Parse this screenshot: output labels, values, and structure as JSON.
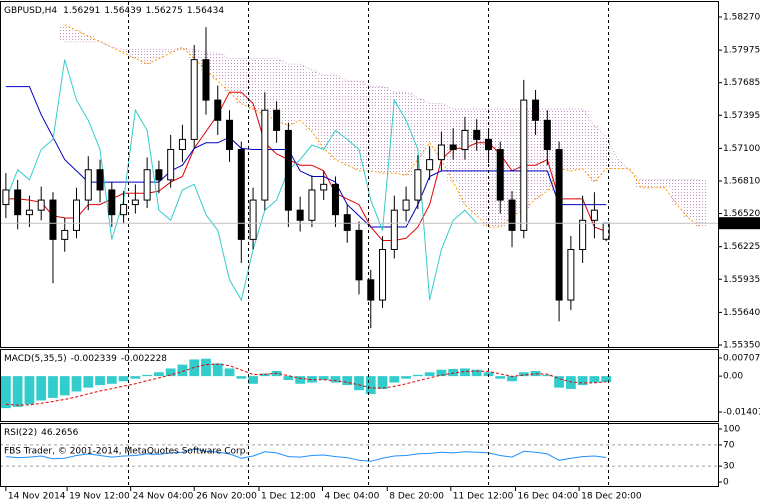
{
  "chart_data": [
    {
      "type": "candlestick",
      "title": "GBPUSD,H4",
      "x": [
        0,
        1,
        2,
        3,
        4,
        5,
        6,
        7,
        8,
        9,
        10,
        11,
        12,
        13,
        14,
        15,
        16,
        17,
        18,
        19,
        20,
        21,
        22,
        23,
        24,
        25,
        26,
        27,
        28,
        29,
        30,
        31,
        32,
        33,
        34,
        35,
        36,
        37,
        38,
        39,
        40,
        41,
        42,
        43,
        44,
        45,
        46,
        47,
        48,
        49,
        50,
        51,
        52,
        53,
        54,
        55,
        56,
        57,
        58,
        59
      ],
      "xlim": [
        -0.5,
        60.5
      ],
      "xticks": [
        {
          "value": 0,
          "label": "14 Nov 2014"
        },
        {
          "value": 5.2,
          "label": "19 Nov 12:00"
        },
        {
          "value": 10.6,
          "label": "24 Nov 04:00"
        },
        {
          "value": 16,
          "label": "26 Nov 20:00"
        },
        {
          "value": 21.5,
          "label": "1 Dec 12:00"
        },
        {
          "value": 26.9,
          "label": "4 Dec 04:00"
        },
        {
          "value": 32.4,
          "label": "8 Dec 20:00"
        },
        {
          "value": 37.8,
          "label": "11 Dec 12:00"
        },
        {
          "value": 43.3,
          "label": "16 Dec 04:00"
        },
        {
          "value": 48.7,
          "label": "18 Dec 20:00"
        }
      ],
      "ylim": [
        1.55332,
        1.58421
      ],
      "yticks": [
        {
          "value": 1.5827,
          "label": "1.58270"
        },
        1.57975,
        1.57685,
        1.57395,
        {
          "value": 1.571,
          "label": "1.57100"
        },
        {
          "value": 1.5681,
          "label": "1.56810"
        },
        {
          "value": 1.5652,
          "label": "1.56520"
        },
        1.56225,
        1.55935,
        {
          "value": 1.5564,
          "label": "1.55640"
        },
        {
          "value": 1.5535,
          "label": "1.55350"
        }
      ],
      "up_color": "#ffffff",
      "down_color": "#000000",
      "open": [
        1.566,
        1.5673,
        1.5651,
        1.5655,
        1.5664,
        1.5629,
        1.5637,
        1.5664,
        1.5691,
        1.5673,
        1.5651,
        1.566,
        1.5664,
        1.5691,
        1.5682,
        1.5709,
        1.5718,
        1.5789,
        1.5753,
        1.5735,
        1.5709,
        1.5629,
        1.5664,
        1.5744,
        1.5726,
        1.5655,
        1.5646,
        1.5673,
        1.5678,
        1.5651,
        1.5637,
        1.5593,
        1.5575,
        1.562,
        1.5655,
        1.5664,
        1.5691,
        1.57,
        1.5713,
        1.5709,
        1.5726,
        1.5718,
        1.5709,
        1.5664,
        1.5637,
        1.5753,
        1.5735,
        1.5709,
        1.5575,
        1.562,
        1.5646,
        1.56291,
        null,
        null,
        null,
        null,
        null,
        null,
        null,
        null
      ],
      "high": [
        1.5688,
        1.5682,
        1.5668,
        1.5676,
        1.5671,
        1.5648,
        1.5675,
        1.5703,
        1.57,
        1.568,
        1.5672,
        1.5678,
        1.5702,
        1.5699,
        1.5722,
        1.5731,
        1.5802,
        1.5818,
        1.5766,
        1.5744,
        1.5716,
        1.5675,
        1.576,
        1.5752,
        1.5733,
        1.5667,
        1.5686,
        1.569,
        1.5685,
        1.566,
        1.5645,
        1.5602,
        1.5632,
        1.5668,
        1.5676,
        1.5704,
        1.5712,
        1.5725,
        1.5728,
        1.5738,
        1.5736,
        1.5728,
        1.5716,
        1.5672,
        1.5771,
        1.5762,
        1.5744,
        1.5716,
        1.5632,
        1.5668,
        1.5671,
        1.56439,
        null,
        null,
        null,
        null,
        null,
        null,
        null,
        null
      ],
      "low": [
        1.5648,
        1.5638,
        1.564,
        1.5646,
        1.559,
        1.5618,
        1.563,
        1.5655,
        1.5662,
        1.564,
        1.5643,
        1.5652,
        1.5657,
        1.567,
        1.5675,
        1.5698,
        1.571,
        1.574,
        1.5722,
        1.5698,
        1.5608,
        1.562,
        1.5655,
        1.5715,
        1.564,
        1.5636,
        1.564,
        1.5664,
        1.564,
        1.5626,
        1.558,
        1.555,
        1.5568,
        1.5612,
        1.5645,
        1.5656,
        1.5682,
        1.569,
        1.57,
        1.57,
        1.5708,
        1.5697,
        1.5652,
        1.5622,
        1.563,
        1.5722,
        1.5695,
        1.5556,
        1.5566,
        1.5608,
        1.563,
        1.56275,
        null,
        null,
        null,
        null,
        null,
        null,
        null,
        null
      ],
      "close": [
        1.5673,
        1.5651,
        1.5655,
        1.5664,
        1.5629,
        1.5637,
        1.5664,
        1.5691,
        1.5673,
        1.5651,
        1.566,
        1.5664,
        1.5691,
        1.5682,
        1.5709,
        1.5718,
        1.5789,
        1.5753,
        1.5735,
        1.5709,
        1.5629,
        1.5664,
        1.5744,
        1.5726,
        1.5655,
        1.5646,
        1.5673,
        1.5678,
        1.5651,
        1.5637,
        1.5593,
        1.5575,
        1.562,
        1.5655,
        1.5664,
        1.5691,
        1.57,
        1.5713,
        1.5709,
        1.5726,
        1.5718,
        1.5709,
        1.5664,
        1.5637,
        1.5753,
        1.5735,
        1.5709,
        1.5575,
        1.562,
        1.5646,
        1.5655,
        1.56434,
        null,
        null,
        null,
        null,
        null,
        null,
        null,
        null
      ],
      "lines": [
        {
          "color": "#e00000",
          "style": "solid",
          "values": [
            1.5665,
            1.5665,
            1.5664,
            1.5662,
            1.565,
            1.5648,
            1.5648,
            1.566,
            1.566,
            1.5665,
            1.567,
            1.567,
            1.567,
            1.5672,
            1.568,
            1.5685,
            1.571,
            1.5725,
            1.574,
            1.576,
            1.576,
            1.575,
            1.5715,
            1.5705,
            1.57,
            1.5695,
            1.5695,
            1.569,
            1.567,
            1.5665,
            1.566,
            1.564,
            1.5628,
            1.5628,
            1.563,
            1.564,
            1.566,
            1.57,
            1.571,
            1.571,
            1.5715,
            1.5715,
            1.5705,
            1.569,
            1.5695,
            1.5695,
            1.57,
            1.5665,
            1.5665,
            1.5665,
            1.564,
            1.5636,
            null,
            null,
            null,
            null,
            null,
            null,
            null,
            null
          ]
        },
        {
          "color": "#0000c0",
          "style": "solid",
          "values": [
            1.5765,
            1.5765,
            1.5765,
            1.574,
            1.572,
            1.57,
            1.569,
            1.568,
            1.568,
            1.568,
            1.568,
            1.568,
            1.568,
            1.568,
            1.569,
            1.5695,
            1.571,
            1.5715,
            1.5715,
            1.572,
            1.571,
            1.5709,
            1.5709,
            1.5709,
            1.5709,
            1.569,
            1.5685,
            1.5685,
            1.568,
            1.566,
            1.565,
            1.564,
            1.564,
            1.564,
            1.564,
            1.566,
            1.5685,
            1.569,
            1.569,
            1.569,
            1.569,
            1.569,
            1.569,
            1.569,
            1.569,
            1.569,
            1.569,
            1.566,
            1.566,
            1.566,
            1.566,
            1.566,
            null,
            null,
            null,
            null,
            null,
            null,
            null,
            null
          ]
        },
        {
          "color": "#33cccc",
          "style": "solid",
          "values": [
            1.5664,
            1.5691,
            1.5682,
            1.5709,
            1.5718,
            1.5789,
            1.5753,
            1.5735,
            1.5709,
            1.5629,
            1.5664,
            1.5744,
            1.5726,
            1.5655,
            1.5646,
            1.5673,
            1.5678,
            1.5651,
            1.5637,
            1.5593,
            1.5575,
            1.562,
            1.5655,
            1.5664,
            1.5691,
            1.57,
            1.5713,
            1.5709,
            1.5726,
            1.5718,
            1.5709,
            1.5664,
            1.5637,
            1.5753,
            1.5735,
            1.5709,
            1.5575,
            1.562,
            1.5646,
            1.5655,
            1.56434,
            null,
            null,
            null,
            null,
            null,
            null,
            null,
            null,
            null,
            null,
            null,
            null,
            null,
            null,
            null,
            null,
            null,
            null,
            null
          ]
        }
      ],
      "cloud": {
        "color": "#c090c0",
        "span_a_color": "#ff9900",
        "span_b_color": "#d0a0d0",
        "span_a": [
          null,
          null,
          null,
          null,
          null,
          1.582,
          1.5815,
          1.581,
          1.5805,
          1.58,
          1.5795,
          1.579,
          1.5785,
          1.579,
          1.5795,
          1.58,
          1.579,
          1.578,
          1.577,
          1.576,
          1.575,
          1.5745,
          1.574,
          1.5735,
          1.573,
          1.5735,
          1.5725,
          1.571,
          1.57,
          1.5695,
          1.569,
          1.569,
          1.5688,
          1.5688,
          1.5686,
          1.57,
          1.5715,
          1.57,
          1.568,
          1.566,
          1.565,
          1.564,
          1.564,
          1.565,
          1.5655,
          1.5665,
          1.5672,
          1.5692,
          1.569,
          1.5692,
          1.568,
          1.5692,
          1.5692,
          1.5692,
          1.5675,
          1.5675,
          1.5675,
          1.566,
          1.5648,
          1.564
        ],
        "span_b": [
          null,
          null,
          null,
          null,
          null,
          1.5805,
          1.5805,
          1.5805,
          1.5805,
          1.58,
          1.5798,
          1.5798,
          1.5798,
          1.5798,
          1.5798,
          1.5798,
          1.5798,
          1.5795,
          1.5795,
          1.579,
          1.579,
          1.579,
          1.579,
          1.579,
          1.5785,
          1.5785,
          1.578,
          1.5775,
          1.5775,
          1.577,
          1.577,
          1.5765,
          1.5765,
          1.576,
          1.576,
          1.5755,
          1.575,
          1.575,
          1.5745,
          1.5745,
          1.5745,
          1.5745,
          1.5745,
          1.5745,
          1.5745,
          1.5745,
          1.5745,
          1.5745,
          1.5745,
          1.5745,
          1.573,
          1.572,
          1.57,
          1.569,
          1.5682,
          1.5682,
          1.5682,
          1.5682,
          1.5682,
          1.5682
        ]
      }
    },
    {
      "type": "bar",
      "title": "MACD(5,35,5)",
      "color": "#33cccc",
      "signal_color": "#e00000",
      "ylim": [
        -0.01752,
        0.00981
      ],
      "yticks": [
        0.007077,
        {
          "value": 0,
          "label": "0.00"
        },
        -0.01401
      ],
      "values": [
        -0.0125,
        -0.012,
        -0.011,
        -0.0095,
        -0.0085,
        -0.0075,
        -0.006,
        -0.0045,
        -0.0035,
        -0.003,
        -0.002,
        -0.001,
        0.0005,
        0.0015,
        0.003,
        0.0045,
        0.0065,
        0.0068,
        0.005,
        0.003,
        -0.001,
        -0.003,
        0.001,
        0.002,
        -0.0015,
        -0.003,
        -0.0025,
        -0.0015,
        -0.0025,
        -0.0035,
        -0.0055,
        -0.007,
        -0.005,
        -0.0025,
        -0.001,
        0.0005,
        0.0015,
        0.0025,
        0.0028,
        0.003,
        0.0025,
        0.0015,
        -0.001,
        -0.002,
        0.0015,
        0.002,
        0.0005,
        -0.0045,
        -0.005,
        -0.0035,
        -0.0025,
        -0.002339,
        null,
        null,
        null,
        null,
        null,
        null,
        null,
        null
      ],
      "signal": [
        -0.011,
        -0.0113,
        -0.0112,
        -0.0106,
        -0.0099,
        -0.0091,
        -0.0081,
        -0.0069,
        -0.0058,
        -0.0049,
        -0.0039,
        -0.003,
        -0.0018,
        -0.0007,
        0.0005,
        0.0018,
        0.0034,
        0.0045,
        0.0047,
        0.0041,
        0.0024,
        0.0006,
        0.0007,
        0.0011,
        0.0002,
        -0.0009,
        -0.0014,
        -0.0014,
        -0.0018,
        -0.0024,
        -0.0034,
        -0.0046,
        -0.0047,
        -0.004,
        -0.003,
        -0.0018,
        -0.0007,
        0.0004,
        0.0012,
        0.0018,
        0.002,
        0.0018,
        0.0009,
        -0.0001,
        0.0004,
        0.0009,
        0.0008,
        -0.001,
        -0.0023,
        -0.0027,
        -0.0026,
        -0.002228,
        null,
        null,
        null,
        null,
        null,
        null,
        null,
        null
      ]
    },
    {
      "type": "line",
      "title": "RSI(22)",
      "color": "#1e90ff",
      "ylim": [
        -7.5,
        109.4
      ],
      "yticks": [
        100,
        70,
        30,
        0
      ],
      "levels": [
        70,
        30
      ],
      "values": [
        48,
        46,
        47,
        49,
        44,
        45,
        50,
        53,
        50,
        47,
        49,
        50,
        53,
        52,
        55,
        56,
        62,
        58,
        56,
        53,
        45,
        49,
        57,
        55,
        48,
        47,
        50,
        51,
        48,
        46,
        41,
        39,
        45,
        49,
        50,
        53,
        54,
        56,
        55,
        57,
        56,
        55,
        50,
        47,
        58,
        56,
        53,
        41,
        45,
        48,
        49,
        46.2656,
        null,
        null,
        null,
        null,
        null,
        null,
        null,
        null
      ]
    }
  ],
  "footer": "FBS Trader, © 2001-2014, MetaQuotes Software Corp."
}
